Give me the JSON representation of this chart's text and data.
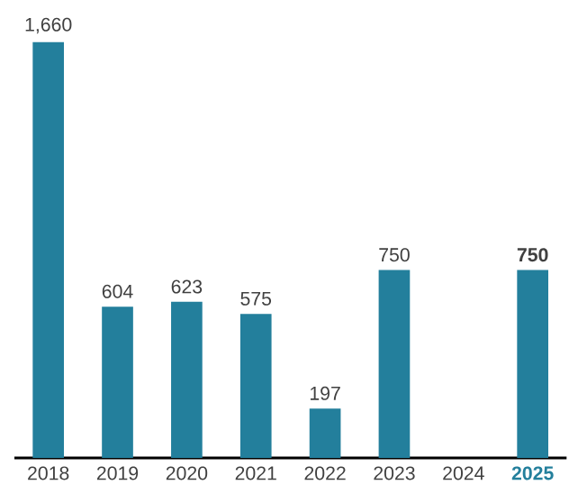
{
  "chart_data": {
    "type": "bar",
    "categories": [
      "2018",
      "2019",
      "2020",
      "2021",
      "2022",
      "2023",
      "2024",
      "2025"
    ],
    "values": [
      1660,
      604,
      623,
      575,
      197,
      750,
      null,
      750
    ],
    "value_labels": [
      "1,660",
      "604",
      "623",
      "575",
      "197",
      "750",
      null,
      "750"
    ],
    "color": "#237f9c"
  }
}
